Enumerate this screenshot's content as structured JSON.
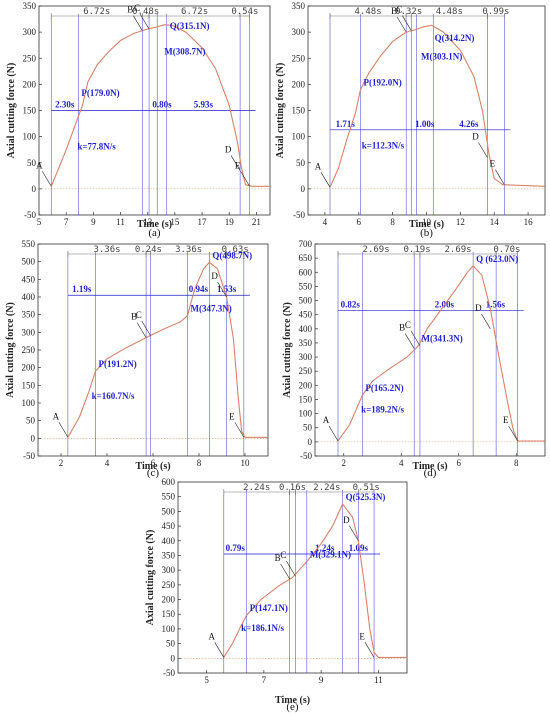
{
  "chart_data": [
    {
      "type": "line",
      "panel": "(a)",
      "xlabel": "Time (s)",
      "ylabel": "Axial cutting force (N)",
      "xlim": [
        5,
        22
      ],
      "ylim": [
        -50,
        350
      ],
      "xticks": [
        5,
        7,
        9,
        11,
        13,
        15,
        17,
        19,
        21
      ],
      "yticks": [
        -50,
        0,
        50,
        100,
        150,
        200,
        250,
        300,
        350
      ],
      "curve": [
        [
          5.9,
          5
        ],
        [
          6.3,
          30
        ],
        [
          7.0,
          75
        ],
        [
          7.7,
          125
        ],
        [
          8.2,
          160
        ],
        [
          8.6,
          205
        ],
        [
          9.3,
          238
        ],
        [
          10.1,
          262
        ],
        [
          11.0,
          284
        ],
        [
          12.0,
          298
        ],
        [
          13.0,
          306
        ],
        [
          13.4,
          308
        ],
        [
          13.7,
          310
        ],
        [
          14.2,
          314
        ],
        [
          14.8,
          313
        ],
        [
          15.8,
          300
        ],
        [
          17.0,
          270
        ],
        [
          18.0,
          230
        ],
        [
          19.0,
          160
        ],
        [
          19.6,
          90
        ],
        [
          19.9,
          40
        ],
        [
          20.2,
          8
        ],
        [
          20.7,
          5
        ],
        [
          22.0,
          5
        ]
      ],
      "points": [
        {
          "label": "A",
          "x": 5.9,
          "y": 5
        },
        {
          "label": "B",
          "x": 12.6,
          "y": 303
        },
        {
          "label": "C",
          "x": 13.1,
          "y": 306
        },
        {
          "label": "D",
          "x": 19.8,
          "y": 35
        },
        {
          "label": "E",
          "x": 20.5,
          "y": 5
        }
      ],
      "annotations": [
        {
          "label": "P(179.0N)",
          "x": 7.9,
          "y": 170
        },
        {
          "label": "M(308.7N)",
          "x": 14.0,
          "y": 250
        },
        {
          "label": "Q(315.1N)",
          "x": 14.4,
          "y": 298
        },
        {
          "label": "k=77.8N/s",
          "x": 7.6,
          "y": 68
        }
      ],
      "vlines": [
        5.9,
        7.9,
        12.6,
        13.1,
        13.7,
        14.4,
        19.8,
        20.5
      ],
      "hline": 150,
      "dims_top": [
        {
          "label": "6.72s",
          "x1": 5.9,
          "x2": 12.6
        },
        {
          "label": "0.48s",
          "x1": 12.6,
          "x2": 13.1
        },
        {
          "label": "6.72s",
          "x1": 13.1,
          "x2": 19.8
        },
        {
          "label": "0.54s",
          "x1": 19.8,
          "x2": 20.5
        }
      ],
      "dims_mid": [
        {
          "label": "2.30s",
          "x1": 5.9,
          "x2": 7.9
        },
        {
          "label": "0.80s",
          "x1": 13.7,
          "x2": 14.4
        },
        {
          "label": "5.93s",
          "x1": 14.4,
          "x2": 19.8
        }
      ]
    },
    {
      "type": "line",
      "panel": "(b)",
      "xlabel": "Time (s)",
      "ylabel": "Axial cutting force (N)",
      "xlim": [
        3,
        17
      ],
      "ylim": [
        -50,
        350
      ],
      "xticks": [
        4,
        6,
        8,
        10,
        12,
        14,
        16
      ],
      "yticks": [
        -50,
        0,
        50,
        100,
        150,
        200,
        250,
        300,
        350
      ],
      "curve": [
        [
          4.3,
          3
        ],
        [
          4.8,
          40
        ],
        [
          5.3,
          95
        ],
        [
          5.8,
          145
        ],
        [
          6.1,
          190
        ],
        [
          6.6,
          222
        ],
        [
          7.3,
          255
        ],
        [
          8.0,
          282
        ],
        [
          8.7,
          298
        ],
        [
          9.0,
          302
        ],
        [
          9.3,
          304
        ],
        [
          9.8,
          310
        ],
        [
          10.3,
          313
        ],
        [
          11.0,
          300
        ],
        [
          12.0,
          265
        ],
        [
          12.8,
          215
        ],
        [
          13.3,
          150
        ],
        [
          13.7,
          65
        ],
        [
          14.0,
          20
        ],
        [
          14.5,
          8
        ],
        [
          17.0,
          5
        ]
      ],
      "points": [
        {
          "label": "A",
          "x": 4.3,
          "y": 3
        },
        {
          "label": "B",
          "x": 8.8,
          "y": 300
        },
        {
          "label": "C",
          "x": 9.1,
          "y": 303
        },
        {
          "label": "D",
          "x": 13.6,
          "y": 60
        },
        {
          "label": "E",
          "x": 14.6,
          "y": 8
        }
      ],
      "annotations": [
        {
          "label": "P(192.0N)",
          "x": 6.1,
          "y": 190
        },
        {
          "label": "M(303.1N)",
          "x": 9.5,
          "y": 240
        },
        {
          "label": "Q(314.2N)",
          "x": 10.3,
          "y": 275
        },
        {
          "label": "k=112.3N/s",
          "x": 6.0,
          "y": 70
        }
      ],
      "vlines": [
        4.3,
        6.1,
        8.8,
        9.1,
        9.4,
        10.4,
        13.6,
        14.6
      ],
      "hline": 113,
      "dims_top": [
        {
          "label": "4.48s",
          "x1": 4.3,
          "x2": 8.8
        },
        {
          "label": "0.32s",
          "x1": 8.8,
          "x2": 9.1
        },
        {
          "label": "4.48s",
          "x1": 9.1,
          "x2": 13.6
        },
        {
          "label": "0.99s",
          "x1": 13.6,
          "x2": 14.6
        }
      ],
      "dims_mid": [
        {
          "label": "1.71s",
          "x1": 4.3,
          "x2": 6.1
        },
        {
          "label": "1.00s",
          "x1": 9.4,
          "x2": 10.4
        },
        {
          "label": "4.26s",
          "x1": 10.4,
          "x2": 14.6
        }
      ]
    },
    {
      "type": "line",
      "panel": "(c)",
      "xlabel": "Time (s)",
      "ylabel": "Axial cutting force (N)",
      "xlim": [
        1,
        11
      ],
      "ylim": [
        -50,
        550
      ],
      "xticks": [
        2,
        4,
        6,
        8,
        10
      ],
      "yticks": [
        -50,
        0,
        50,
        100,
        150,
        200,
        250,
        300,
        350,
        400,
        450,
        500,
        550
      ],
      "curve": [
        [
          2.3,
          3
        ],
        [
          2.8,
          60
        ],
        [
          3.2,
          130
        ],
        [
          3.5,
          190
        ],
        [
          4.0,
          225
        ],
        [
          4.8,
          255
        ],
        [
          5.7,
          285
        ],
        [
          6.5,
          310
        ],
        [
          7.2,
          330
        ],
        [
          7.5,
          347
        ],
        [
          7.8,
          420
        ],
        [
          8.2,
          480
        ],
        [
          8.45,
          498
        ],
        [
          8.8,
          480
        ],
        [
          9.2,
          400
        ],
        [
          9.5,
          280
        ],
        [
          9.7,
          120
        ],
        [
          9.85,
          20
        ],
        [
          10.0,
          3
        ],
        [
          11.0,
          3
        ]
      ],
      "points": [
        {
          "label": "A",
          "x": 2.3,
          "y": 3
        },
        {
          "label": "B",
          "x": 5.7,
          "y": 285
        },
        {
          "label": "C",
          "x": 5.9,
          "y": 290
        },
        {
          "label": "D",
          "x": 9.2,
          "y": 400
        },
        {
          "label": "E",
          "x": 9.95,
          "y": 3
        }
      ],
      "annotations": [
        {
          "label": "P(191.2N)",
          "x": 3.5,
          "y": 190
        },
        {
          "label": "M(347.3N)",
          "x": 7.5,
          "y": 347
        },
        {
          "label": "Q(498.7N)",
          "x": 8.45,
          "y": 498
        },
        {
          "label": "k=160.7N/s",
          "x": 3.2,
          "y": 100
        }
      ],
      "vlines": [
        2.3,
        3.5,
        5.7,
        5.9,
        7.5,
        8.45,
        9.2,
        9.95
      ],
      "hline": 405,
      "dims_top": [
        {
          "label": "3.36s",
          "x1": 2.3,
          "x2": 5.7
        },
        {
          "label": "0.24s",
          "x1": 5.7,
          "x2": 5.9
        },
        {
          "label": "3.36s",
          "x1": 5.9,
          "x2": 9.2
        },
        {
          "label": "0.63s",
          "x1": 9.2,
          "x2": 9.95
        }
      ],
      "dims_mid": [
        {
          "label": "1.19s",
          "x1": 2.3,
          "x2": 3.5
        },
        {
          "label": "0.94s",
          "x1": 7.5,
          "x2": 8.45
        },
        {
          "label": "1.53s",
          "x1": 8.45,
          "x2": 9.95
        }
      ]
    },
    {
      "type": "line",
      "panel": "(d)",
      "xlabel": "Time (s)",
      "ylabel": "Axial cutting force (N)",
      "xlim": [
        1,
        9
      ],
      "ylim": [
        -50,
        700
      ],
      "xticks": [
        2,
        4,
        6,
        8
      ],
      "yticks": [
        -50,
        0,
        50,
        100,
        150,
        200,
        250,
        300,
        350,
        400,
        450,
        500,
        550,
        600,
        650,
        700
      ],
      "curve": [
        [
          1.8,
          3
        ],
        [
          2.2,
          60
        ],
        [
          2.5,
          130
        ],
        [
          2.65,
          165
        ],
        [
          3.0,
          215
        ],
        [
          3.6,
          260
        ],
        [
          4.2,
          300
        ],
        [
          4.5,
          330
        ],
        [
          4.6,
          341
        ],
        [
          4.9,
          400
        ],
        [
          5.4,
          470
        ],
        [
          5.9,
          540
        ],
        [
          6.3,
          600
        ],
        [
          6.5,
          623
        ],
        [
          6.8,
          590
        ],
        [
          7.1,
          470
        ],
        [
          7.4,
          300
        ],
        [
          7.7,
          140
        ],
        [
          7.9,
          40
        ],
        [
          8.05,
          3
        ],
        [
          9.0,
          3
        ]
      ],
      "points": [
        {
          "label": "A",
          "x": 1.8,
          "y": 3
        },
        {
          "label": "B",
          "x": 4.45,
          "y": 330
        },
        {
          "label": "C",
          "x": 4.65,
          "y": 340
        },
        {
          "label": "D",
          "x": 7.1,
          "y": 400
        },
        {
          "label": "E",
          "x": 8.05,
          "y": 3
        }
      ],
      "annotations": [
        {
          "label": "P(165.2N)",
          "x": 2.65,
          "y": 165
        },
        {
          "label": "M(341.3N)",
          "x": 4.6,
          "y": 341
        },
        {
          "label": "Q (623.0N)",
          "x": 6.5,
          "y": 623
        },
        {
          "label": "k=189.2N/s",
          "x": 2.5,
          "y": 90
        }
      ],
      "vlines": [
        1.8,
        2.65,
        4.45,
        4.65,
        6.5,
        7.3,
        8.05
      ],
      "hline": 465,
      "dims_top": [
        {
          "label": "2.69s",
          "x1": 1.8,
          "x2": 4.45
        },
        {
          "label": "0.19s",
          "x1": 4.45,
          "x2": 4.65
        },
        {
          "label": "2.69s",
          "x1": 4.65,
          "x2": 7.3
        },
        {
          "label": "0.70s",
          "x1": 7.3,
          "x2": 8.05
        }
      ],
      "dims_mid": [
        {
          "label": "0.82s",
          "x1": 1.8,
          "x2": 2.65
        },
        {
          "label": "2.00s",
          "x1": 4.5,
          "x2": 6.5
        },
        {
          "label": "1.56s",
          "x1": 6.5,
          "x2": 8.05
        }
      ]
    },
    {
      "type": "line",
      "panel": "(e)",
      "xlabel": "Time (s)",
      "ylabel": "Axial cutting force (N)",
      "xlim": [
        4,
        12
      ],
      "ylim": [
        -50,
        600
      ],
      "xticks": [
        5,
        7,
        9,
        11
      ],
      "yticks": [
        -50,
        0,
        50,
        100,
        150,
        200,
        250,
        300,
        350,
        400,
        450,
        500,
        550,
        600
      ],
      "curve": [
        [
          5.6,
          3
        ],
        [
          5.9,
          50
        ],
        [
          6.2,
          110
        ],
        [
          6.4,
          147
        ],
        [
          6.9,
          200
        ],
        [
          7.5,
          245
        ],
        [
          8.0,
          275
        ],
        [
          8.5,
          329
        ],
        [
          9.0,
          390
        ],
        [
          9.4,
          450
        ],
        [
          9.75,
          525
        ],
        [
          10.1,
          480
        ],
        [
          10.3,
          400
        ],
        [
          10.5,
          260
        ],
        [
          10.7,
          100
        ],
        [
          10.85,
          20
        ],
        [
          11.0,
          3
        ],
        [
          12.0,
          3
        ]
      ],
      "points": [
        {
          "label": "A",
          "x": 5.6,
          "y": 3
        },
        {
          "label": "B",
          "x": 7.9,
          "y": 270
        },
        {
          "label": "C",
          "x": 8.1,
          "y": 280
        },
        {
          "label": "D",
          "x": 10.3,
          "y": 400
        },
        {
          "label": "E",
          "x": 10.85,
          "y": 3
        }
      ],
      "annotations": [
        {
          "label": "P(147.1N)",
          "x": 6.4,
          "y": 147
        },
        {
          "label": "M(329.1N)",
          "x": 8.5,
          "y": 329
        },
        {
          "label": "Q(525.3N)",
          "x": 9.75,
          "y": 525
        },
        {
          "label": "k=186.1N/s",
          "x": 6.1,
          "y": 80
        }
      ],
      "vlines": [
        5.6,
        6.4,
        7.9,
        8.1,
        8.5,
        9.75,
        10.3,
        10.85
      ],
      "hline": 355,
      "dims_top": [
        {
          "label": "2.24s",
          "x1": 5.6,
          "x2": 7.9
        },
        {
          "label": "0.16s",
          "x1": 7.9,
          "x2": 8.1
        },
        {
          "label": "2.24s",
          "x1": 8.1,
          "x2": 10.3
        },
        {
          "label": "0.51s",
          "x1": 10.3,
          "x2": 10.85
        }
      ],
      "dims_mid": [
        {
          "label": "0.79s",
          "x1": 5.6,
          "x2": 6.4
        },
        {
          "label": "1.24s",
          "x1": 8.5,
          "x2": 9.75
        },
        {
          "label": "1.09s",
          "x1": 9.75,
          "x2": 10.85
        }
      ]
    }
  ],
  "colors": {
    "curve": "#d9826a",
    "blue": "#1e1ed2",
    "axis": "#333333",
    "dim": "#777777",
    "zero": "#d9a06a"
  }
}
